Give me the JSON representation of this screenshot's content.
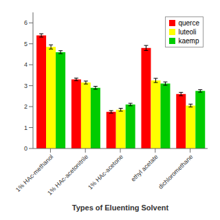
{
  "chart_data": {
    "type": "bar",
    "xlabel": "Types of Eluenting Solvent",
    "categories": [
      "1% HAc-methanol",
      "1% HAc-acetonitrile",
      "1%  HAc-acetone",
      "ethyl acetate",
      "dichloromethane"
    ],
    "series": [
      {
        "name": "querce",
        "color": "#ff0000",
        "values": [
          5.4,
          3.3,
          1.75,
          4.8,
          2.6
        ],
        "errors": [
          0.08,
          0.06,
          0.06,
          0.12,
          0.08
        ]
      },
      {
        "name": "luteoli",
        "color": "#ffff00",
        "values": [
          4.85,
          3.15,
          1.85,
          3.25,
          2.05
        ],
        "errors": [
          0.1,
          0.07,
          0.07,
          0.1,
          0.07
        ]
      },
      {
        "name": "kaemp",
        "color": "#00cc00",
        "values": [
          4.6,
          2.9,
          2.1,
          3.1,
          2.75
        ],
        "errors": [
          0.07,
          0.07,
          0.06,
          0.08,
          0.06
        ]
      }
    ],
    "ylim": [
      0,
      6.5
    ],
    "yticks": [
      0,
      1,
      2,
      3,
      4,
      5,
      6
    ],
    "grid": false,
    "legend": "upper right"
  }
}
